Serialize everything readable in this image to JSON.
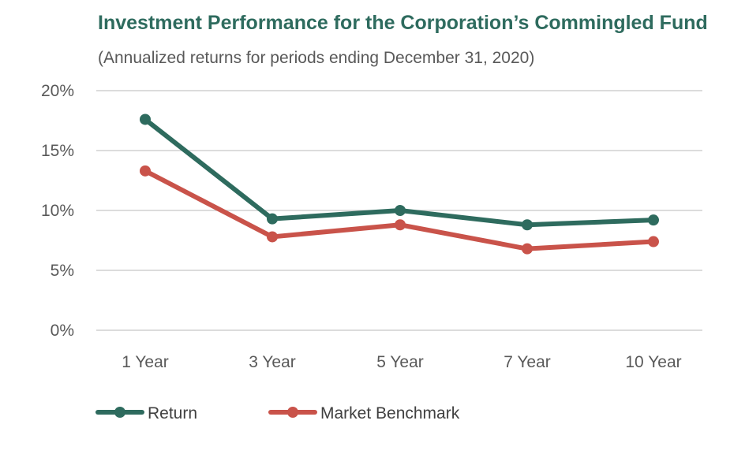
{
  "chart_data": {
    "type": "line",
    "title": "Investment Performance for the Corporation’s Commingled Fund",
    "subtitle": "(Annualized returns for periods ending December 31, 2020)",
    "xlabel": "",
    "ylabel": "",
    "categories": [
      "1 Year",
      "3 Year",
      "5 Year",
      "7 Year",
      "10 Year"
    ],
    "y_ticks": [
      "0%",
      "5%",
      "10%",
      "15%",
      "20%"
    ],
    "y_tick_values": [
      0,
      5,
      10,
      15,
      20
    ],
    "ylim": [
      0,
      20
    ],
    "grid": true,
    "legend_position": "bottom-left",
    "title_color": "#2e6b5e",
    "series": [
      {
        "name": "Return",
        "color": "#2e6b5e",
        "values": [
          17.6,
          9.3,
          10.0,
          8.8,
          9.2
        ]
      },
      {
        "name": "Market Benchmark",
        "color": "#c9534a",
        "values": [
          13.3,
          7.8,
          8.8,
          6.8,
          7.4
        ]
      }
    ]
  }
}
